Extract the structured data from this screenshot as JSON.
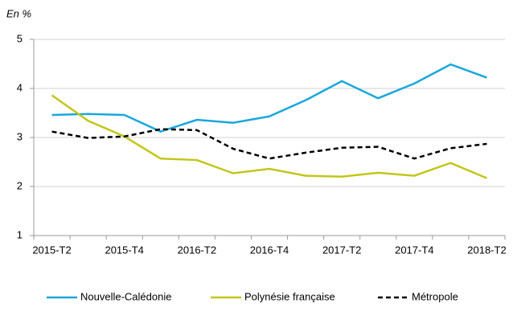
{
  "chart_data": {
    "type": "line",
    "y_label": "En %",
    "categories": [
      "2015-T2",
      null,
      "2015-T4",
      null,
      "2016-T2",
      null,
      "2016-T4",
      null,
      "2017-T2",
      null,
      "2017-T4",
      null,
      "2018-T2"
    ],
    "series": [
      {
        "name": "Nouvelle-Calédonie",
        "color": "#1aa7dd",
        "style": "solid",
        "values": [
          3.46,
          3.48,
          3.46,
          3.12,
          3.36,
          3.3,
          3.43,
          3.76,
          4.15,
          3.8,
          4.1,
          4.49,
          4.22
        ]
      },
      {
        "name": "Polynésie française",
        "color": "#c3c61a",
        "style": "solid",
        "values": [
          3.86,
          3.34,
          3.02,
          2.57,
          2.54,
          2.27,
          2.36,
          2.22,
          2.2,
          2.28,
          2.22,
          2.48,
          2.17
        ]
      },
      {
        "name": "Métropole",
        "color": "#000000",
        "style": "dashed",
        "values": [
          3.12,
          2.99,
          3.02,
          3.17,
          3.15,
          2.77,
          2.57,
          2.69,
          2.79,
          2.81,
          2.57,
          2.78,
          2.87
        ]
      }
    ],
    "ylim": [
      1,
      5
    ],
    "yticks": [
      1,
      2,
      3,
      4,
      5
    ],
    "grid": true,
    "legend": "bottom"
  }
}
